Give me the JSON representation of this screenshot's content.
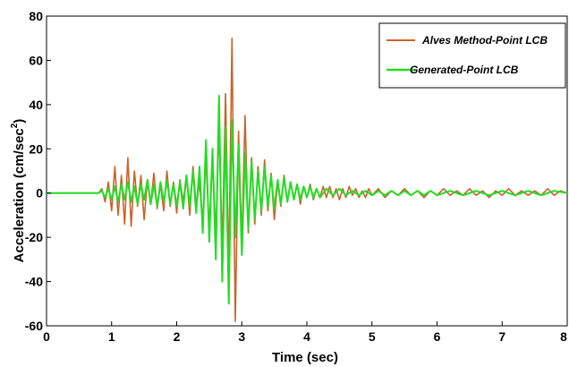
{
  "chart_data": {
    "type": "line",
    "xlabel": "Time (sec)",
    "ylabel_main": "Acceleration (cm/sec",
    "ylabel_sup": "2",
    "ylabel_close": ")",
    "xlim": [
      0,
      8
    ],
    "ylim": [
      -60,
      80
    ],
    "xticks": [
      0,
      1,
      2,
      3,
      4,
      5,
      6,
      7,
      8
    ],
    "yticks": [
      -60,
      -40,
      -20,
      0,
      20,
      40,
      60,
      80
    ],
    "grid": false,
    "legend_position": "top-right",
    "series": [
      {
        "name": "Alves Method-Point LCB",
        "color": "#c8642a",
        "x": [
          0,
          0.8,
          0.85,
          0.9,
          0.95,
          1.0,
          1.05,
          1.1,
          1.15,
          1.2,
          1.25,
          1.3,
          1.35,
          1.4,
          1.45,
          1.5,
          1.55,
          1.6,
          1.65,
          1.7,
          1.75,
          1.8,
          1.85,
          1.9,
          1.95,
          2.0,
          2.05,
          2.1,
          2.15,
          2.2,
          2.25,
          2.3,
          2.35,
          2.4,
          2.45,
          2.5,
          2.55,
          2.6,
          2.65,
          2.7,
          2.75,
          2.8,
          2.85,
          2.9,
          2.95,
          3.0,
          3.05,
          3.1,
          3.15,
          3.2,
          3.25,
          3.3,
          3.35,
          3.4,
          3.45,
          3.5,
          3.55,
          3.6,
          3.65,
          3.7,
          3.75,
          3.8,
          3.85,
          3.9,
          3.95,
          4.0,
          4.05,
          4.1,
          4.15,
          4.2,
          4.25,
          4.3,
          4.35,
          4.4,
          4.45,
          4.5,
          4.55,
          4.6,
          4.65,
          4.7,
          4.75,
          4.8,
          4.85,
          4.9,
          4.95,
          5.0,
          5.1,
          5.2,
          5.3,
          5.4,
          5.5,
          5.6,
          5.7,
          5.8,
          5.9,
          6.0,
          6.1,
          6.2,
          6.3,
          6.4,
          6.5,
          6.6,
          6.7,
          6.8,
          6.9,
          7.0,
          7.1,
          7.2,
          7.3,
          7.4,
          7.5,
          7.6,
          7.7,
          7.8,
          7.9,
          8.0
        ],
        "y": [
          0,
          0,
          2,
          -4,
          5,
          -8,
          12,
          -10,
          8,
          -14,
          16,
          -15,
          10,
          -6,
          8,
          -12,
          6,
          -5,
          9,
          -7,
          4,
          -8,
          10,
          -6,
          5,
          -9,
          6,
          -4,
          8,
          -10,
          12,
          -6,
          5,
          -14,
          15,
          -16,
          18,
          -20,
          30,
          -25,
          45,
          -35,
          70,
          -58,
          28,
          -22,
          35,
          -18,
          16,
          -14,
          12,
          -10,
          15,
          -8,
          9,
          -12,
          5,
          -6,
          8,
          -4,
          5,
          -3,
          4,
          -5,
          3,
          -2,
          4,
          -3,
          2,
          -2,
          3,
          -2,
          3,
          -2,
          2,
          -3,
          2,
          -2,
          3,
          -1,
          2,
          -2,
          1,
          -2,
          2,
          -1,
          2,
          -2,
          1,
          -1,
          2,
          -1,
          1,
          -2,
          1,
          -1,
          2,
          -1,
          1,
          -1,
          2,
          -1,
          1,
          -2,
          1,
          -1,
          2,
          -1,
          1,
          -1,
          1,
          -1,
          2,
          -1,
          1,
          0
        ]
      },
      {
        "name": "Generated-Point LCB",
        "color": "#22dd22",
        "x": [
          0,
          0.8,
          0.85,
          0.9,
          0.95,
          1.0,
          1.05,
          1.1,
          1.15,
          1.2,
          1.25,
          1.3,
          1.35,
          1.4,
          1.45,
          1.5,
          1.55,
          1.6,
          1.65,
          1.7,
          1.75,
          1.8,
          1.85,
          1.9,
          1.95,
          2.0,
          2.05,
          2.1,
          2.15,
          2.2,
          2.25,
          2.3,
          2.35,
          2.4,
          2.45,
          2.5,
          2.55,
          2.6,
          2.65,
          2.7,
          2.75,
          2.8,
          2.85,
          2.9,
          2.95,
          3.0,
          3.05,
          3.1,
          3.15,
          3.2,
          3.25,
          3.3,
          3.35,
          3.4,
          3.45,
          3.5,
          3.55,
          3.6,
          3.65,
          3.7,
          3.75,
          3.8,
          3.85,
          3.9,
          3.95,
          4.0,
          4.05,
          4.1,
          4.15,
          4.2,
          4.3,
          4.4,
          4.5,
          4.6,
          4.7,
          4.8,
          4.9,
          5.0,
          5.1,
          5.2,
          5.3,
          5.4,
          5.5,
          5.6,
          5.7,
          5.8,
          5.9,
          6.0,
          6.2,
          6.4,
          6.6,
          6.8,
          7.0,
          7.2,
          7.4,
          7.6,
          7.8,
          8.0
        ],
        "y": [
          0,
          0,
          1,
          -2,
          2,
          -3,
          3,
          -4,
          4,
          -3,
          5,
          -4,
          3,
          -5,
          4,
          -3,
          6,
          -5,
          4,
          -6,
          5,
          -4,
          6,
          -5,
          4,
          -6,
          5,
          -7,
          8,
          -6,
          10,
          -9,
          12,
          -18,
          24,
          -22,
          20,
          -30,
          44,
          -40,
          30,
          -50,
          33,
          -20,
          22,
          -28,
          18,
          -16,
          14,
          -12,
          10,
          -8,
          12,
          -6,
          8,
          -7,
          6,
          -5,
          7,
          -4,
          5,
          -3,
          4,
          -3,
          3,
          -2,
          3,
          -2,
          2,
          -2,
          2,
          -1,
          2,
          -1,
          1,
          -1,
          1,
          -1,
          1,
          -1,
          1,
          -1,
          1,
          -1,
          1,
          -1,
          1,
          -1,
          1,
          -1,
          1,
          -1,
          1,
          -1,
          1,
          -1,
          1,
          0
        ]
      }
    ]
  }
}
